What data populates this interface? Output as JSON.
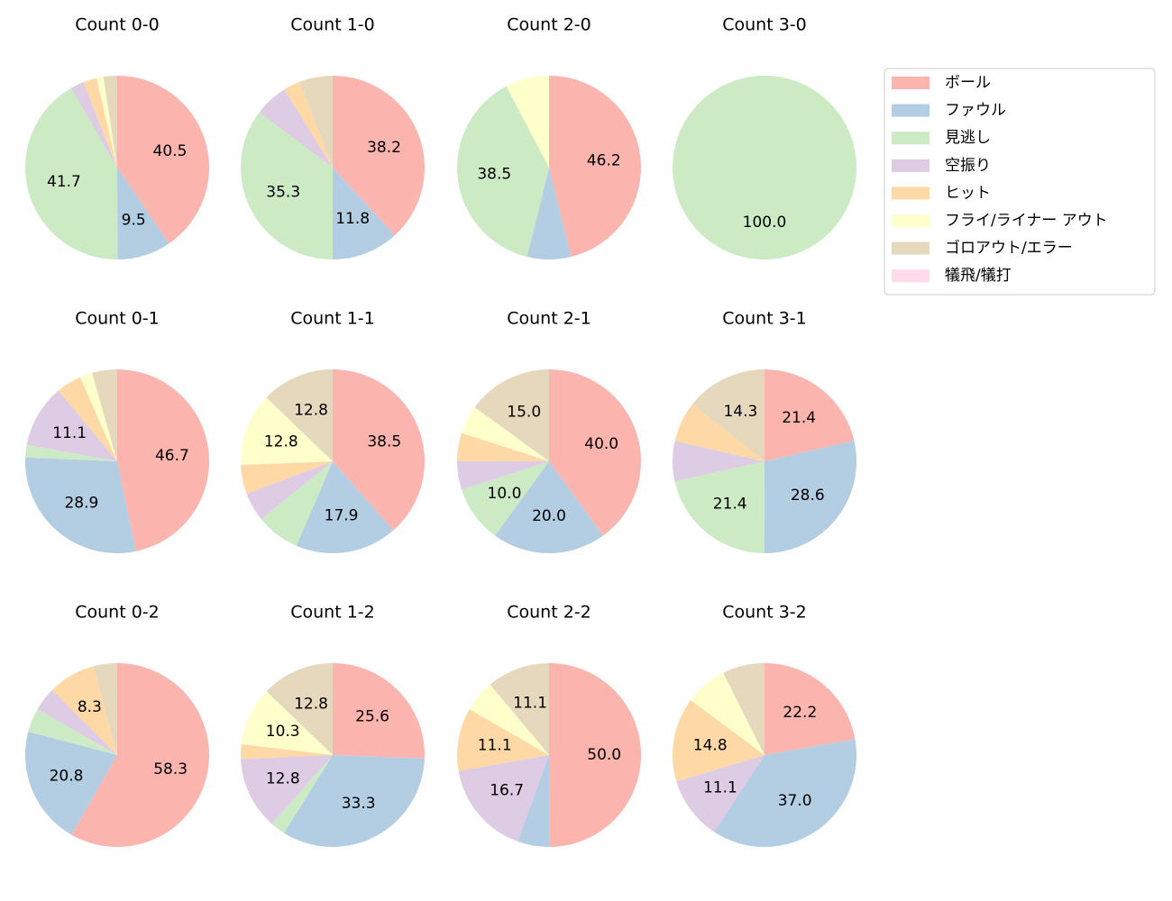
{
  "chart_data": [
    {
      "type": "pie",
      "title": "Count 0-0",
      "categories": [
        "ボール",
        "ファウル",
        "見逃し",
        "空振り",
        "ヒット",
        "フライ/ライナー アウト",
        "ゴロアウト/エラー",
        "犠飛/犠打"
      ],
      "colors": [
        "#fbb4ae",
        "#b3cde3",
        "#ccebc5",
        "#decbe4",
        "#fed9a6",
        "#ffffcc",
        "#e5d8bd",
        "#fddaec"
      ],
      "values": [
        40.5,
        9.5,
        41.7,
        2.4,
        2.4,
        1.2,
        2.4,
        0
      ],
      "value_labels": [
        "40.5",
        "9.5",
        "41.7",
        null,
        null,
        null,
        null,
        null
      ]
    },
    {
      "type": "pie",
      "title": "Count 1-0",
      "categories": [
        "ボール",
        "ファウル",
        "見逃し",
        "空振り",
        "ヒット",
        "フライ/ライナー アウト",
        "ゴロアウト/エラー",
        "犠飛/犠打"
      ],
      "colors": [
        "#fbb4ae",
        "#b3cde3",
        "#ccebc5",
        "#decbe4",
        "#fed9a6",
        "#ffffcc",
        "#e5d8bd",
        "#fddaec"
      ],
      "values": [
        38.2,
        11.8,
        35.3,
        5.9,
        2.9,
        0,
        5.9,
        0
      ],
      "value_labels": [
        "38.2",
        "11.8",
        "35.3",
        null,
        null,
        null,
        null,
        null
      ]
    },
    {
      "type": "pie",
      "title": "Count 2-0",
      "categories": [
        "ボール",
        "ファウル",
        "見逃し",
        "空振り",
        "ヒット",
        "フライ/ライナー アウト",
        "ゴロアウト/エラー",
        "犠飛/犠打"
      ],
      "colors": [
        "#fbb4ae",
        "#b3cde3",
        "#ccebc5",
        "#decbe4",
        "#fed9a6",
        "#ffffcc",
        "#e5d8bd",
        "#fddaec"
      ],
      "values": [
        46.2,
        7.7,
        38.5,
        0,
        0,
        7.7,
        0,
        0
      ],
      "value_labels": [
        "46.2",
        null,
        "38.5",
        null,
        null,
        null,
        null,
        null
      ]
    },
    {
      "type": "pie",
      "title": "Count 3-0",
      "categories": [
        "ボール",
        "ファウル",
        "見逃し",
        "空振り",
        "ヒット",
        "フライ/ライナー アウト",
        "ゴロアウト/エラー",
        "犠飛/犠打"
      ],
      "colors": [
        "#fbb4ae",
        "#b3cde3",
        "#ccebc5",
        "#decbe4",
        "#fed9a6",
        "#ffffcc",
        "#e5d8bd",
        "#fddaec"
      ],
      "values": [
        0,
        0,
        100,
        0,
        0,
        0,
        0,
        0
      ],
      "value_labels": [
        null,
        null,
        "100.0",
        null,
        null,
        null,
        null,
        null
      ]
    },
    {
      "type": "pie",
      "title": "Count 0-1",
      "categories": [
        "ボール",
        "ファウル",
        "見逃し",
        "空振り",
        "ヒット",
        "フライ/ライナー アウト",
        "ゴロアウト/エラー",
        "犠飛/犠打"
      ],
      "colors": [
        "#fbb4ae",
        "#b3cde3",
        "#ccebc5",
        "#decbe4",
        "#fed9a6",
        "#ffffcc",
        "#e5d8bd",
        "#fddaec"
      ],
      "values": [
        46.7,
        28.9,
        2.2,
        11.1,
        4.4,
        2.2,
        4.4,
        0
      ],
      "value_labels": [
        "46.7",
        "28.9",
        null,
        "11.1",
        null,
        null,
        null,
        null
      ]
    },
    {
      "type": "pie",
      "title": "Count 1-1",
      "categories": [
        "ボール",
        "ファウル",
        "見逃し",
        "空振り",
        "ヒット",
        "フライ/ライナー アウト",
        "ゴロアウト/エラー",
        "犠飛/犠打"
      ],
      "colors": [
        "#fbb4ae",
        "#b3cde3",
        "#ccebc5",
        "#decbe4",
        "#fed9a6",
        "#ffffcc",
        "#e5d8bd",
        "#fddaec"
      ],
      "values": [
        38.5,
        17.9,
        7.7,
        5.1,
        5.1,
        12.8,
        12.8,
        0
      ],
      "value_labels": [
        "38.5",
        "17.9",
        null,
        null,
        null,
        "12.8",
        "12.8",
        null
      ]
    },
    {
      "type": "pie",
      "title": "Count 2-1",
      "categories": [
        "ボール",
        "ファウル",
        "見逃し",
        "空振り",
        "ヒット",
        "フライ/ライナー アウト",
        "ゴロアウト/エラー",
        "犠飛/犠打"
      ],
      "colors": [
        "#fbb4ae",
        "#b3cde3",
        "#ccebc5",
        "#decbe4",
        "#fed9a6",
        "#ffffcc",
        "#e5d8bd",
        "#fddaec"
      ],
      "values": [
        40,
        20,
        10,
        5,
        5,
        5,
        15,
        0
      ],
      "value_labels": [
        "40.0",
        "20.0",
        "10.0",
        null,
        null,
        null,
        "15.0",
        null
      ]
    },
    {
      "type": "pie",
      "title": "Count 3-1",
      "categories": [
        "ボール",
        "ファウル",
        "見逃し",
        "空振り",
        "ヒット",
        "フライ/ライナー アウト",
        "ゴロアウト/エラー",
        "犠飛/犠打"
      ],
      "colors": [
        "#fbb4ae",
        "#b3cde3",
        "#ccebc5",
        "#decbe4",
        "#fed9a6",
        "#ffffcc",
        "#e5d8bd",
        "#fddaec"
      ],
      "values": [
        21.4,
        28.6,
        21.4,
        7.1,
        7.1,
        0,
        14.3,
        0
      ],
      "value_labels": [
        "21.4",
        "28.6",
        "21.4",
        null,
        null,
        null,
        "14.3",
        null
      ]
    },
    {
      "type": "pie",
      "title": "Count 0-2",
      "categories": [
        "ボール",
        "ファウル",
        "見逃し",
        "空振り",
        "ヒット",
        "フライ/ライナー アウト",
        "ゴロアウト/エラー",
        "犠飛/犠打"
      ],
      "colors": [
        "#fbb4ae",
        "#b3cde3",
        "#ccebc5",
        "#decbe4",
        "#fed9a6",
        "#ffffcc",
        "#e5d8bd",
        "#fddaec"
      ],
      "values": [
        58.3,
        20.8,
        4.2,
        4.2,
        8.3,
        0,
        4.2,
        0
      ],
      "value_labels": [
        "58.3",
        "20.8",
        null,
        null,
        "8.3",
        null,
        null,
        null
      ]
    },
    {
      "type": "pie",
      "title": "Count 1-2",
      "categories": [
        "ボール",
        "ファウル",
        "見逃し",
        "空振り",
        "ヒット",
        "フライ/ライナー アウト",
        "ゴロアウト/エラー",
        "犠飛/犠打"
      ],
      "colors": [
        "#fbb4ae",
        "#b3cde3",
        "#ccebc5",
        "#decbe4",
        "#fed9a6",
        "#ffffcc",
        "#e5d8bd",
        "#fddaec"
      ],
      "values": [
        25.6,
        33.3,
        2.6,
        12.8,
        2.6,
        10.3,
        12.8,
        0
      ],
      "value_labels": [
        "25.6",
        "33.3",
        null,
        "12.8",
        null,
        "10.3",
        "12.8",
        null
      ]
    },
    {
      "type": "pie",
      "title": "Count 2-2",
      "categories": [
        "ボール",
        "ファウル",
        "見逃し",
        "空振り",
        "ヒット",
        "フライ/ライナー アウト",
        "ゴロアウト/エラー",
        "犠飛/犠打"
      ],
      "colors": [
        "#fbb4ae",
        "#b3cde3",
        "#ccebc5",
        "#decbe4",
        "#fed9a6",
        "#ffffcc",
        "#e5d8bd",
        "#fddaec"
      ],
      "values": [
        50,
        5.6,
        0,
        16.7,
        11.1,
        5.6,
        11.1,
        0
      ],
      "value_labels": [
        "50.0",
        null,
        null,
        "16.7",
        "11.1",
        null,
        "11.1",
        null
      ]
    },
    {
      "type": "pie",
      "title": "Count 3-2",
      "categories": [
        "ボール",
        "ファウル",
        "見逃し",
        "空振り",
        "ヒット",
        "フライ/ライナー アウト",
        "ゴロアウト/エラー",
        "犠飛/犠打"
      ],
      "colors": [
        "#fbb4ae",
        "#b3cde3",
        "#ccebc5",
        "#decbe4",
        "#fed9a6",
        "#ffffcc",
        "#e5d8bd",
        "#fddaec"
      ],
      "values": [
        22.2,
        37,
        0,
        11.1,
        14.8,
        7.4,
        7.4,
        0
      ],
      "value_labels": [
        "22.2",
        "37.0",
        null,
        "11.1",
        "14.8",
        null,
        null,
        null
      ]
    }
  ]
}
